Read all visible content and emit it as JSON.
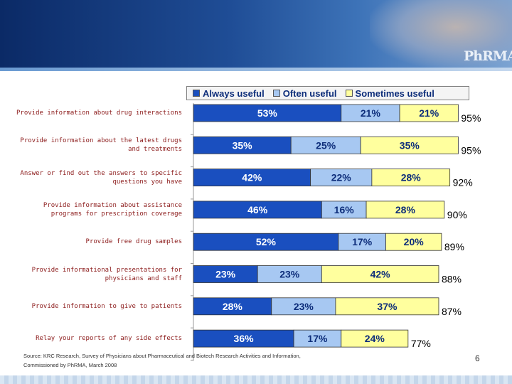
{
  "slide": {
    "logo_text": "PhRMA",
    "source": "Source: KRC Research, Survey of Physicians about Pharmaceutical and Biotech Research Activities and Information,\nCommissioned by PhRMA, March 2008",
    "page_number": "6"
  },
  "colors": {
    "always": "#1a4fbf",
    "often": "#a7c8f2",
    "sometimes": "#ffff9e",
    "always_text": "#ffffff",
    "other_text": "#0d2d7a",
    "label_text": "#8b1a1a"
  },
  "chart_data": {
    "type": "bar",
    "orientation": "horizontal",
    "stacked": true,
    "legend": [
      "Always useful",
      "Often useful",
      "Sometimes useful"
    ],
    "legend_position": "top",
    "categories": [
      "Provide information about drug interactions",
      "Provide information about the latest drugs\nand treatments",
      "Answer or find out the answers to specific\nquestions you have",
      "Provide information about assistance\nprograms for prescription coverage",
      "Provide free drug samples",
      "Provide informational presentations for\nphysicians and staff",
      "Provide information to give to patients",
      "Relay your reports of any side effects"
    ],
    "series": [
      {
        "name": "Always useful",
        "values": [
          53,
          35,
          42,
          46,
          52,
          23,
          28,
          36
        ],
        "labels": [
          "53%",
          "35%",
          "42%",
          "46%",
          "52%",
          "23%",
          "28%",
          "36%"
        ]
      },
      {
        "name": "Often useful",
        "values": [
          21,
          25,
          22,
          16,
          17,
          23,
          23,
          17
        ],
        "labels": [
          "21%",
          "25%",
          "22%",
          "16%",
          "17%",
          "23%",
          "23%",
          "17%"
        ]
      },
      {
        "name": "Sometimes useful",
        "values": [
          21,
          35,
          28,
          28,
          20,
          42,
          37,
          24
        ],
        "labels": [
          "21%",
          "35%",
          "28%",
          "28%",
          "20%",
          "42%",
          "37%",
          "24%"
        ]
      }
    ],
    "totals": [
      "95%",
      "95%",
      "92%",
      "90%",
      "89%",
      "88%",
      "87%",
      "77%"
    ],
    "xlim": [
      0,
      100
    ]
  }
}
